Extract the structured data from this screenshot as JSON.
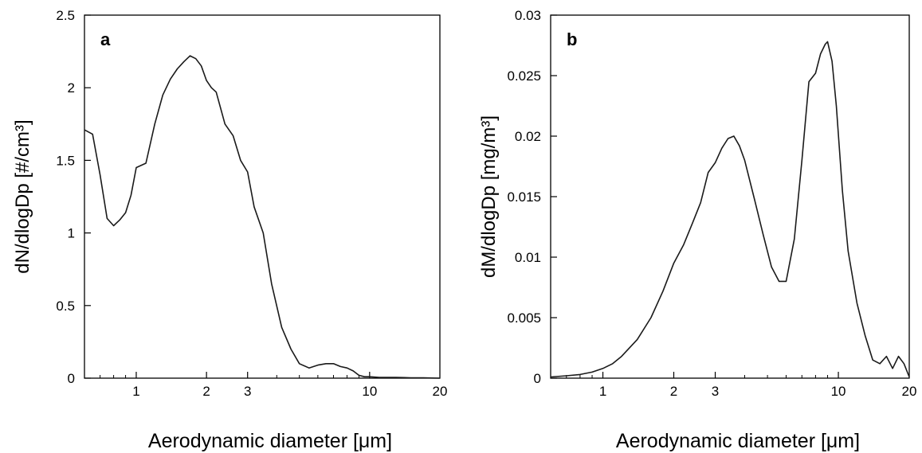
{
  "chart_data": [
    {
      "type": "line",
      "panel_label": "a",
      "x_scale": "log",
      "xlim": [
        0.6,
        20
      ],
      "ylim": [
        0,
        2.5
      ],
      "xlabel": "Aerodynamic diameter [μm]",
      "ylabel": "dN/dlogDp [#/cm³]",
      "x_ticks": [
        1,
        2,
        3,
        10,
        20
      ],
      "y_ticks": [
        0,
        0.5,
        1,
        1.5,
        2,
        2.5
      ],
      "grid": false,
      "series": [
        {
          "x": [
            0.6,
            0.65,
            0.7,
            0.75,
            0.8,
            0.85,
            0.9,
            0.95,
            1.0,
            1.1,
            1.2,
            1.3,
            1.4,
            1.5,
            1.6,
            1.7,
            1.8,
            1.9,
            2.0,
            2.1,
            2.2,
            2.4,
            2.6,
            2.8,
            3.0,
            3.2,
            3.5,
            3.8,
            4.2,
            4.6,
            5.0,
            5.5,
            6.0,
            6.5,
            7.0,
            7.5,
            8.0,
            8.5,
            9.0,
            9.5,
            10,
            11,
            12,
            13,
            15,
            17,
            20
          ],
          "y": [
            1.71,
            1.68,
            1.4,
            1.1,
            1.05,
            1.09,
            1.14,
            1.26,
            1.45,
            1.48,
            1.75,
            1.95,
            2.06,
            2.13,
            2.18,
            2.22,
            2.2,
            2.15,
            2.05,
            2.0,
            1.97,
            1.75,
            1.67,
            1.5,
            1.42,
            1.18,
            1.0,
            0.65,
            0.35,
            0.2,
            0.1,
            0.07,
            0.09,
            0.1,
            0.1,
            0.08,
            0.07,
            0.05,
            0.02,
            0.01,
            0.01,
            0.005,
            0.005,
            0.005,
            0.003,
            0.002,
            0.0
          ]
        }
      ]
    },
    {
      "type": "line",
      "panel_label": "b",
      "x_scale": "log",
      "xlim": [
        0.6,
        20
      ],
      "ylim": [
        0,
        0.03
      ],
      "xlabel": "Aerodynamic diameter [μm]",
      "ylabel": "dM/dlogDp [mg/m³]",
      "x_ticks": [
        1,
        2,
        3,
        10,
        20
      ],
      "y_ticks": [
        0,
        0.005,
        0.01,
        0.015,
        0.02,
        0.025,
        0.03
      ],
      "grid": false,
      "series": [
        {
          "x": [
            0.6,
            0.7,
            0.8,
            0.9,
            1.0,
            1.1,
            1.2,
            1.4,
            1.6,
            1.8,
            2.0,
            2.2,
            2.4,
            2.6,
            2.8,
            3.0,
            3.2,
            3.4,
            3.6,
            3.8,
            4.0,
            4.4,
            4.8,
            5.2,
            5.6,
            6.0,
            6.5,
            7.0,
            7.5,
            8.0,
            8.4,
            8.8,
            9.0,
            9.4,
            9.8,
            10.4,
            11,
            12,
            13,
            14,
            15,
            16,
            17,
            18,
            19,
            20
          ],
          "y": [
            0.0001,
            0.0002,
            0.0003,
            0.0005,
            0.0008,
            0.0012,
            0.0018,
            0.0032,
            0.005,
            0.0072,
            0.0095,
            0.011,
            0.0128,
            0.0145,
            0.017,
            0.0178,
            0.019,
            0.0198,
            0.02,
            0.0192,
            0.018,
            0.0148,
            0.0118,
            0.0092,
            0.008,
            0.008,
            0.0115,
            0.018,
            0.0245,
            0.0252,
            0.0268,
            0.0276,
            0.0278,
            0.0262,
            0.0225,
            0.0155,
            0.0105,
            0.0062,
            0.0035,
            0.0015,
            0.0012,
            0.0018,
            0.0008,
            0.0018,
            0.0012,
            0.0001
          ]
        }
      ]
    }
  ]
}
